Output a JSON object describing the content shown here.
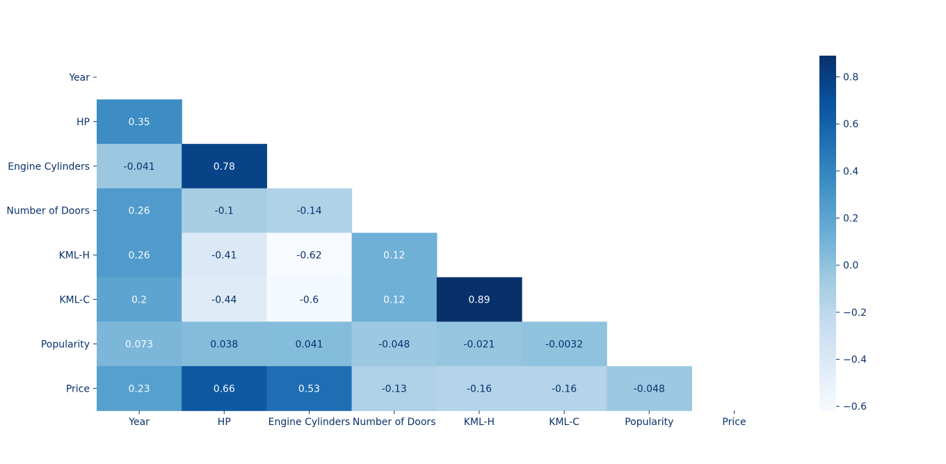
{
  "chart_data": {
    "type": "heatmap",
    "title": "",
    "xlabel": "",
    "ylabel": "",
    "variables": [
      "Year",
      "HP",
      "Engine Cylinders",
      "Number of Doors",
      "KML-H",
      "KML-C",
      "Popularity",
      "Price"
    ],
    "mask": "upper-triangle-including-diagonal",
    "cells": [
      {
        "row": "HP",
        "col": "Year",
        "value": 0.35,
        "label": "0.35"
      },
      {
        "row": "Engine Cylinders",
        "col": "Year",
        "value": -0.041,
        "label": "-0.041"
      },
      {
        "row": "Engine Cylinders",
        "col": "HP",
        "value": 0.78,
        "label": "0.78"
      },
      {
        "row": "Number of Doors",
        "col": "Year",
        "value": 0.26,
        "label": "0.26"
      },
      {
        "row": "Number of Doors",
        "col": "HP",
        "value": -0.1,
        "label": "-0.1"
      },
      {
        "row": "Number of Doors",
        "col": "Engine Cylinders",
        "value": -0.14,
        "label": "-0.14"
      },
      {
        "row": "KML-H",
        "col": "Year",
        "value": 0.26,
        "label": "0.26"
      },
      {
        "row": "KML-H",
        "col": "HP",
        "value": -0.41,
        "label": "-0.41"
      },
      {
        "row": "KML-H",
        "col": "Engine Cylinders",
        "value": -0.62,
        "label": "-0.62"
      },
      {
        "row": "KML-H",
        "col": "Number of Doors",
        "value": 0.12,
        "label": "0.12"
      },
      {
        "row": "KML-C",
        "col": "Year",
        "value": 0.2,
        "label": "0.2"
      },
      {
        "row": "KML-C",
        "col": "HP",
        "value": -0.44,
        "label": "-0.44"
      },
      {
        "row": "KML-C",
        "col": "Engine Cylinders",
        "value": -0.6,
        "label": "-0.6"
      },
      {
        "row": "KML-C",
        "col": "Number of Doors",
        "value": 0.12,
        "label": "0.12"
      },
      {
        "row": "KML-C",
        "col": "KML-H",
        "value": 0.89,
        "label": "0.89"
      },
      {
        "row": "Popularity",
        "col": "Year",
        "value": 0.073,
        "label": "0.073"
      },
      {
        "row": "Popularity",
        "col": "HP",
        "value": 0.038,
        "label": "0.038"
      },
      {
        "row": "Popularity",
        "col": "Engine Cylinders",
        "value": 0.041,
        "label": "0.041"
      },
      {
        "row": "Popularity",
        "col": "Number of Doors",
        "value": -0.048,
        "label": "-0.048"
      },
      {
        "row": "Popularity",
        "col": "KML-H",
        "value": -0.021,
        "label": "-0.021"
      },
      {
        "row": "Popularity",
        "col": "KML-C",
        "value": -0.0032,
        "label": "-0.0032"
      },
      {
        "row": "Price",
        "col": "Year",
        "value": 0.23,
        "label": "0.23"
      },
      {
        "row": "Price",
        "col": "HP",
        "value": 0.66,
        "label": "0.66"
      },
      {
        "row": "Price",
        "col": "Engine Cylinders",
        "value": 0.53,
        "label": "0.53"
      },
      {
        "row": "Price",
        "col": "Number of Doors",
        "value": -0.13,
        "label": "-0.13"
      },
      {
        "row": "Price",
        "col": "KML-H",
        "value": -0.16,
        "label": "-0.16"
      },
      {
        "row": "Price",
        "col": "KML-C",
        "value": -0.16,
        "label": "-0.16"
      },
      {
        "row": "Price",
        "col": "Popularity",
        "value": -0.048,
        "label": "-0.048"
      }
    ],
    "colormap": "Blues",
    "colorbar": {
      "vmin": -0.62,
      "vmax": 0.89,
      "ticks": [
        -0.6,
        -0.4,
        -0.2,
        0.0,
        0.2,
        0.4,
        0.6,
        0.8
      ],
      "tick_labels": [
        "−0.6",
        "−0.4",
        "−0.2",
        "0.0",
        "0.2",
        "0.4",
        "0.6",
        "0.8"
      ]
    },
    "colors": {
      "text_dark": "#08306b",
      "text_light": "#f7fbff",
      "tick_label": "#08306b"
    }
  }
}
